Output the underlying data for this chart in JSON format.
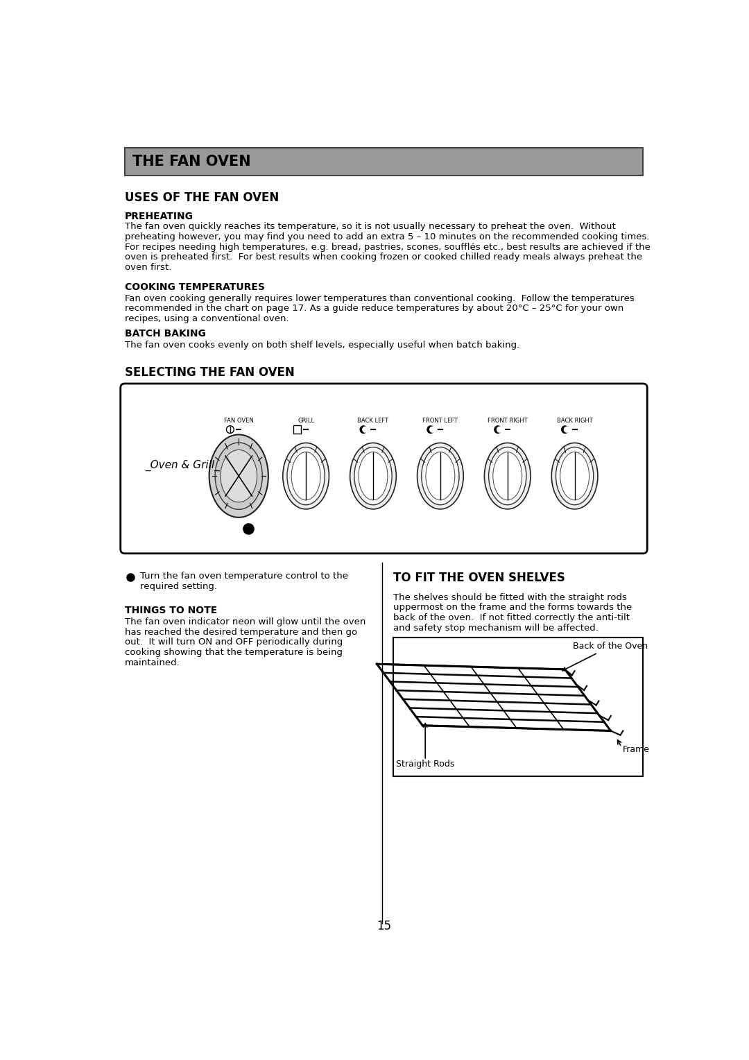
{
  "page_title": "THE FAN OVEN",
  "header_bg": "#999999",
  "section1_title": "USES OF THE FAN OVEN",
  "sub1_title": "PREHEATING",
  "sub1_text": "The fan oven quickly reaches its temperature, so it is not usually necessary to preheat the oven.  Without\npreheating however, you may find you need to add an extra 5 – 10 minutes on the recommended cooking times.\nFor recipes needing high temperatures, e.g. bread, pastries, scones, soufflés etc., best results are achieved if the\noven is preheated first.  For best results when cooking frozen or cooked chilled ready meals always preheat the\noven first.",
  "sub2_title": "COOKING TEMPERATURES",
  "sub2_text": "Fan oven cooking generally requires lower temperatures than conventional cooking.  Follow the temperatures\nrecommended in the chart on page 17. As a guide reduce temperatures by about 20°C – 25°C for your own\nrecipes, using a conventional oven.",
  "sub3_title": "BATCH BAKING",
  "sub3_text": "The fan oven cooks evenly on both shelf levels, especially useful when batch baking.",
  "section2_title": "SELECTING THE FAN OVEN",
  "knob_labels": [
    "FAN OVEN",
    "GRILL",
    "BACK LEFT",
    "FRONT LEFT",
    "FRONT RIGHT",
    "BACK RIGHT"
  ],
  "oven_grill_label": "_Oven & Grill_",
  "things_note_title": "THINGS TO NOTE",
  "things_note_text": "The fan oven indicator neon will glow until the oven\nhas reached the desired temperature and then go\nout.  It will turn ON and OFF periodically during\ncooking showing that the temperature is being\nmaintained.",
  "right_section_title": "TO FIT THE OVEN SHELVES",
  "right_section_text": "The shelves should be fitted with the straight rods\nuppermost on the frame and the forms towards the\nback of the oven.  If not fitted correctly the anti-tilt\nand safety stop mechanism will be affected.",
  "shelf_label_back": "Back of the Oven",
  "shelf_label_straight": "Straight Rods",
  "shelf_label_frame": "Frame",
  "page_number": "15",
  "bg_color": "#ffffff",
  "text_color": "#000000"
}
